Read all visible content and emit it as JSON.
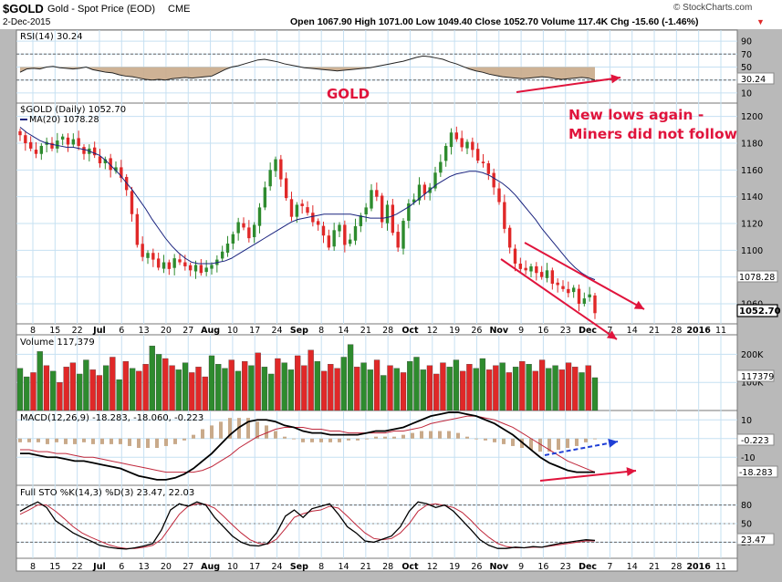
{
  "header": {
    "ticker": "$GOLD",
    "name": "Gold - Spot Price (EOD)",
    "exchange": "CME",
    "date": "2-Dec-2015",
    "brand": "© StockCharts.com",
    "quote": "Open 1067.90  High 1071.00  Low 1049.40  Close 1052.70  Volume 117.4K  Chg -15.60 (-1.46%)",
    "chg_arrow": "▼"
  },
  "annotations": {
    "gold": "GOLD",
    "note_line1": "New lows again -",
    "note_line2": "Miners did not follow"
  },
  "colors": {
    "up": "#2e8b2e",
    "down": "#e02828",
    "ma": "#1a237e",
    "annot": "#e0143c",
    "fill_tan": "#c9aa8a",
    "panel_bg": "#ffffff",
    "grid": "#c6e0f2"
  },
  "x_axis": {
    "labels": [
      "8",
      "15",
      "22",
      "Jul",
      "6",
      "13",
      "20",
      "27",
      "Aug",
      "10",
      "17",
      "24",
      "Sep",
      "8",
      "14",
      "21",
      "28",
      "Oct",
      "12",
      "19",
      "26",
      "Nov",
      "9",
      "16",
      "23",
      "Dec",
      "7",
      "14",
      "21",
      "28",
      "2016",
      "11"
    ]
  },
  "chart_data": [
    {
      "type": "line",
      "title": "RSI(14) 30.24",
      "y_ticks": [
        90,
        70,
        50,
        30,
        10
      ],
      "ylim": [
        0,
        100
      ],
      "reference_lines": [
        70,
        30
      ],
      "current_label": "30.24",
      "values": [
        42,
        47,
        48,
        47,
        50,
        51,
        49,
        48,
        47,
        48,
        50,
        46,
        44,
        42,
        41,
        38,
        36,
        35,
        33,
        31,
        30,
        31,
        30,
        32,
        33,
        34,
        33,
        34,
        35,
        36,
        41,
        46,
        50,
        52,
        55,
        58,
        61,
        62,
        60,
        58,
        55,
        53,
        51,
        49,
        48,
        47,
        46,
        45,
        44,
        45,
        46,
        47,
        48,
        49,
        51,
        53,
        55,
        57,
        59,
        62,
        65,
        67,
        66,
        64,
        62,
        58,
        55,
        51,
        47,
        44,
        42,
        39,
        37,
        35,
        34,
        33,
        32,
        33,
        34,
        35,
        34,
        32,
        31,
        32,
        33,
        34,
        33,
        30
      ]
    },
    {
      "type": "candlestick",
      "title": "$GOLD (Daily) 1052.70",
      "ma_label": "MA(20) 1078.28",
      "y_ticks": [
        1200,
        1180,
        1160,
        1140,
        1120,
        1100,
        1080,
        1060
      ],
      "ylim": [
        1045,
        1210
      ],
      "current_price_label": "1052.70",
      "ma_value_label": "1078.28",
      "close": [
        1186,
        1180,
        1176,
        1172,
        1178,
        1181,
        1176,
        1182,
        1185,
        1179,
        1183,
        1178,
        1172,
        1176,
        1171,
        1165,
        1168,
        1160,
        1162,
        1154,
        1145,
        1127,
        1104,
        1095,
        1098,
        1093,
        1087,
        1091,
        1086,
        1094,
        1091,
        1088,
        1085,
        1089,
        1083,
        1087,
        1089,
        1093,
        1099,
        1105,
        1112,
        1121,
        1117,
        1109,
        1119,
        1132,
        1147,
        1160,
        1168,
        1153,
        1139,
        1125,
        1134,
        1133,
        1128,
        1121,
        1119,
        1111,
        1102,
        1115,
        1119,
        1104,
        1108,
        1118,
        1126,
        1132,
        1145,
        1140,
        1121,
        1134,
        1113,
        1102,
        1122,
        1135,
        1138,
        1149,
        1142,
        1147,
        1158,
        1166,
        1178,
        1188,
        1183,
        1177,
        1181,
        1175,
        1167,
        1165,
        1157,
        1147,
        1136,
        1116,
        1102,
        1090,
        1086,
        1085,
        1088,
        1083,
        1080,
        1085,
        1075,
        1074,
        1071,
        1068,
        1072,
        1060,
        1064,
        1067,
        1053
      ],
      "ma20": [
        1192,
        1188,
        1185,
        1182,
        1180,
        1179,
        1178,
        1177,
        1177,
        1176,
        1175,
        1173,
        1171,
        1167,
        1162,
        1157,
        1151,
        1145,
        1138,
        1131,
        1123,
        1116,
        1109,
        1103,
        1098,
        1094,
        1091,
        1090,
        1090,
        1090,
        1091,
        1092,
        1094,
        1097,
        1100,
        1103,
        1106,
        1109,
        1112,
        1115,
        1118,
        1121,
        1123,
        1124,
        1125,
        1126,
        1127,
        1127,
        1127,
        1127,
        1127,
        1126,
        1125,
        1124,
        1124,
        1124,
        1125,
        1127,
        1130,
        1133,
        1137,
        1141,
        1145,
        1149,
        1152,
        1155,
        1157,
        1158,
        1159,
        1159,
        1158,
        1156,
        1153,
        1150,
        1146,
        1141,
        1135,
        1129,
        1123,
        1116,
        1110,
        1104,
        1098,
        1092,
        1087,
        1083,
        1080,
        1078
      ]
    },
    {
      "type": "bar",
      "title": "Volume 117,379",
      "y_ticks": [
        "200K",
        "100K"
      ],
      "current_label": "117379",
      "values_k": [
        150,
        120,
        135,
        210,
        160,
        140,
        100,
        155,
        170,
        130,
        180,
        145,
        125,
        160,
        190,
        110,
        175,
        150,
        140,
        165,
        230,
        200,
        185,
        160,
        145,
        170,
        135,
        155,
        120,
        195,
        165,
        150,
        180,
        140,
        175,
        160,
        205,
        155,
        130,
        185,
        170,
        145,
        195,
        160,
        215,
        175,
        140,
        165,
        150,
        190,
        235,
        155,
        170,
        145,
        180,
        125,
        160,
        150,
        135,
        175,
        190,
        145,
        160,
        130,
        170,
        155,
        180,
        140,
        165,
        150,
        185,
        145,
        160,
        170,
        135,
        155,
        175,
        165,
        140,
        180,
        150,
        160,
        145,
        170,
        155,
        135,
        160,
        117
      ]
    },
    {
      "type": "line",
      "title": "MACD(12,26,9) -18.283, -18.060, -0.223",
      "y_ticks": [
        10,
        0,
        -10
      ],
      "ylim": [
        -25,
        15
      ],
      "labels": [
        "-0.223",
        "-18.283"
      ],
      "macd": [
        -8,
        -8,
        -9,
        -10,
        -10,
        -11,
        -12,
        -12,
        -13,
        -14,
        -15,
        -16,
        -18,
        -20,
        -21,
        -22,
        -22,
        -21,
        -19,
        -16,
        -12,
        -8,
        -3,
        2,
        6,
        9,
        10,
        10,
        9,
        7,
        6,
        4,
        3,
        3,
        2,
        2,
        2,
        2,
        3,
        4,
        4,
        5,
        6,
        8,
        10,
        12,
        13,
        14,
        14,
        13,
        12,
        10,
        8,
        5,
        2,
        -2,
        -6,
        -10,
        -13,
        -15,
        -17,
        -18,
        -18,
        -18
      ],
      "signal": [
        -6,
        -6,
        -7,
        -7,
        -8,
        -8,
        -9,
        -10,
        -10,
        -11,
        -12,
        -13,
        -14,
        -15,
        -16,
        -17,
        -18,
        -18,
        -18,
        -18,
        -17,
        -15,
        -12,
        -9,
        -5,
        -2,
        1,
        3,
        5,
        6,
        6,
        6,
        5,
        5,
        4,
        4,
        3,
        3,
        3,
        3,
        3,
        4,
        4,
        5,
        6,
        8,
        9,
        10,
        11,
        12,
        12,
        11,
        10,
        8,
        6,
        3,
        0,
        -3,
        -6,
        -9,
        -12,
        -14,
        -16,
        -18
      ]
    },
    {
      "type": "line",
      "title": "Full STO %K(14,3) %D(3) 23.47, 22.03",
      "y_ticks": [
        80,
        50,
        20
      ],
      "ylim": [
        0,
        100
      ],
      "reference_lines": [
        80,
        20
      ],
      "current_label": "23.47",
      "k": [
        70,
        78,
        85,
        76,
        55,
        45,
        35,
        28,
        22,
        15,
        12,
        10,
        9,
        11,
        14,
        18,
        40,
        72,
        82,
        78,
        85,
        80,
        60,
        45,
        30,
        20,
        15,
        14,
        18,
        35,
        62,
        72,
        60,
        74,
        78,
        82,
        65,
        45,
        35,
        22,
        20,
        25,
        30,
        45,
        70,
        85,
        82,
        76,
        80,
        70,
        55,
        40,
        24,
        15,
        10,
        10,
        12,
        11,
        13,
        12,
        15,
        18,
        20,
        22,
        24,
        23
      ],
      "d": [
        65,
        72,
        80,
        80,
        70,
        58,
        45,
        35,
        28,
        22,
        16,
        12,
        10,
        10,
        12,
        15,
        25,
        45,
        65,
        78,
        82,
        81,
        75,
        62,
        48,
        35,
        24,
        18,
        17,
        25,
        42,
        60,
        66,
        70,
        72,
        78,
        75,
        62,
        48,
        35,
        26,
        24,
        26,
        35,
        50,
        70,
        80,
        82,
        79,
        76,
        68,
        55,
        40,
        28,
        18,
        13,
        11,
        11,
        12,
        12,
        14,
        16,
        18,
        20,
        22,
        22
      ]
    }
  ]
}
